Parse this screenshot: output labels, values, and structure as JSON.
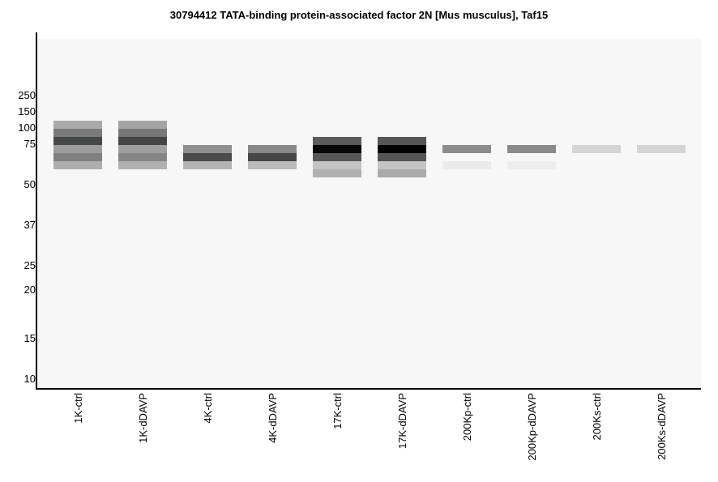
{
  "chart_data": {
    "type": "heatmap",
    "title": "30794412 TATA-binding protein-associated factor 2N [Mus musculus], Taf15",
    "ylabel": "",
    "xlabel": "",
    "y_ticks": [
      "250",
      "150",
      "100",
      "75",
      "50",
      "37",
      "25",
      "20",
      "15",
      "10"
    ],
    "lanes": [
      {
        "name": "1K-ctrl",
        "bands": [
          {
            "slot": 0,
            "gray": "#aaaaaa"
          },
          {
            "slot": 1,
            "gray": "#7a7a7a"
          },
          {
            "slot": 2,
            "gray": "#464848"
          },
          {
            "slot": 3,
            "gray": "#9c9c9c"
          },
          {
            "slot": 4,
            "gray": "#808080"
          },
          {
            "slot": 5,
            "gray": "#aeaeae"
          }
        ]
      },
      {
        "name": "1K-dDAVP",
        "bands": [
          {
            "slot": 0,
            "gray": "#a4a4a4"
          },
          {
            "slot": 1,
            "gray": "#777777"
          },
          {
            "slot": 2,
            "gray": "#444444"
          },
          {
            "slot": 3,
            "gray": "#9f9f9f"
          },
          {
            "slot": 4,
            "gray": "#858585"
          },
          {
            "slot": 5,
            "gray": "#b0b0b0"
          }
        ]
      },
      {
        "name": "4K-ctrl",
        "bands": [
          {
            "slot": 3,
            "gray": "#909090"
          },
          {
            "slot": 4,
            "gray": "#4b4b4b"
          },
          {
            "slot": 5,
            "gray": "#b4b4b4"
          }
        ]
      },
      {
        "name": "4K-dDAVP",
        "bands": [
          {
            "slot": 3,
            "gray": "#888888"
          },
          {
            "slot": 4,
            "gray": "#464646"
          },
          {
            "slot": 5,
            "gray": "#bbbbbb"
          }
        ]
      },
      {
        "name": "17K-ctrl",
        "bands": [
          {
            "slot": 2,
            "gray": "#5c5c5c"
          },
          {
            "slot": 3,
            "gray": "#080808"
          },
          {
            "slot": 4,
            "gray": "#585858"
          },
          {
            "slot": 5,
            "gray": "#c4c4c4"
          },
          {
            "slot": 6,
            "gray": "#b0b0b0"
          }
        ]
      },
      {
        "name": "17K-dDAVP",
        "bands": [
          {
            "slot": 2,
            "gray": "#555555"
          },
          {
            "slot": 3,
            "gray": "#000000"
          },
          {
            "slot": 4,
            "gray": "#555555"
          },
          {
            "slot": 5,
            "gray": "#c4c4c4"
          },
          {
            "slot": 6,
            "gray": "#aaaaaa"
          }
        ]
      },
      {
        "name": "200Kp-ctrl",
        "bands": [
          {
            "slot": 3,
            "gray": "#8c8c8c"
          },
          {
            "slot": 5,
            "gray": "#ebebeb"
          }
        ]
      },
      {
        "name": "200Kp-dDAVP",
        "bands": [
          {
            "slot": 3,
            "gray": "#8a8a8a"
          },
          {
            "slot": 5,
            "gray": "#ededed"
          }
        ]
      },
      {
        "name": "200Ks-ctrl",
        "bands": [
          {
            "slot": 3,
            "gray": "#d5d5d5"
          }
        ]
      },
      {
        "name": "200Ks-dDAVP",
        "bands": [
          {
            "slot": 3,
            "gray": "#d5d5d5"
          }
        ]
      }
    ],
    "background": "#f7f7f7"
  }
}
